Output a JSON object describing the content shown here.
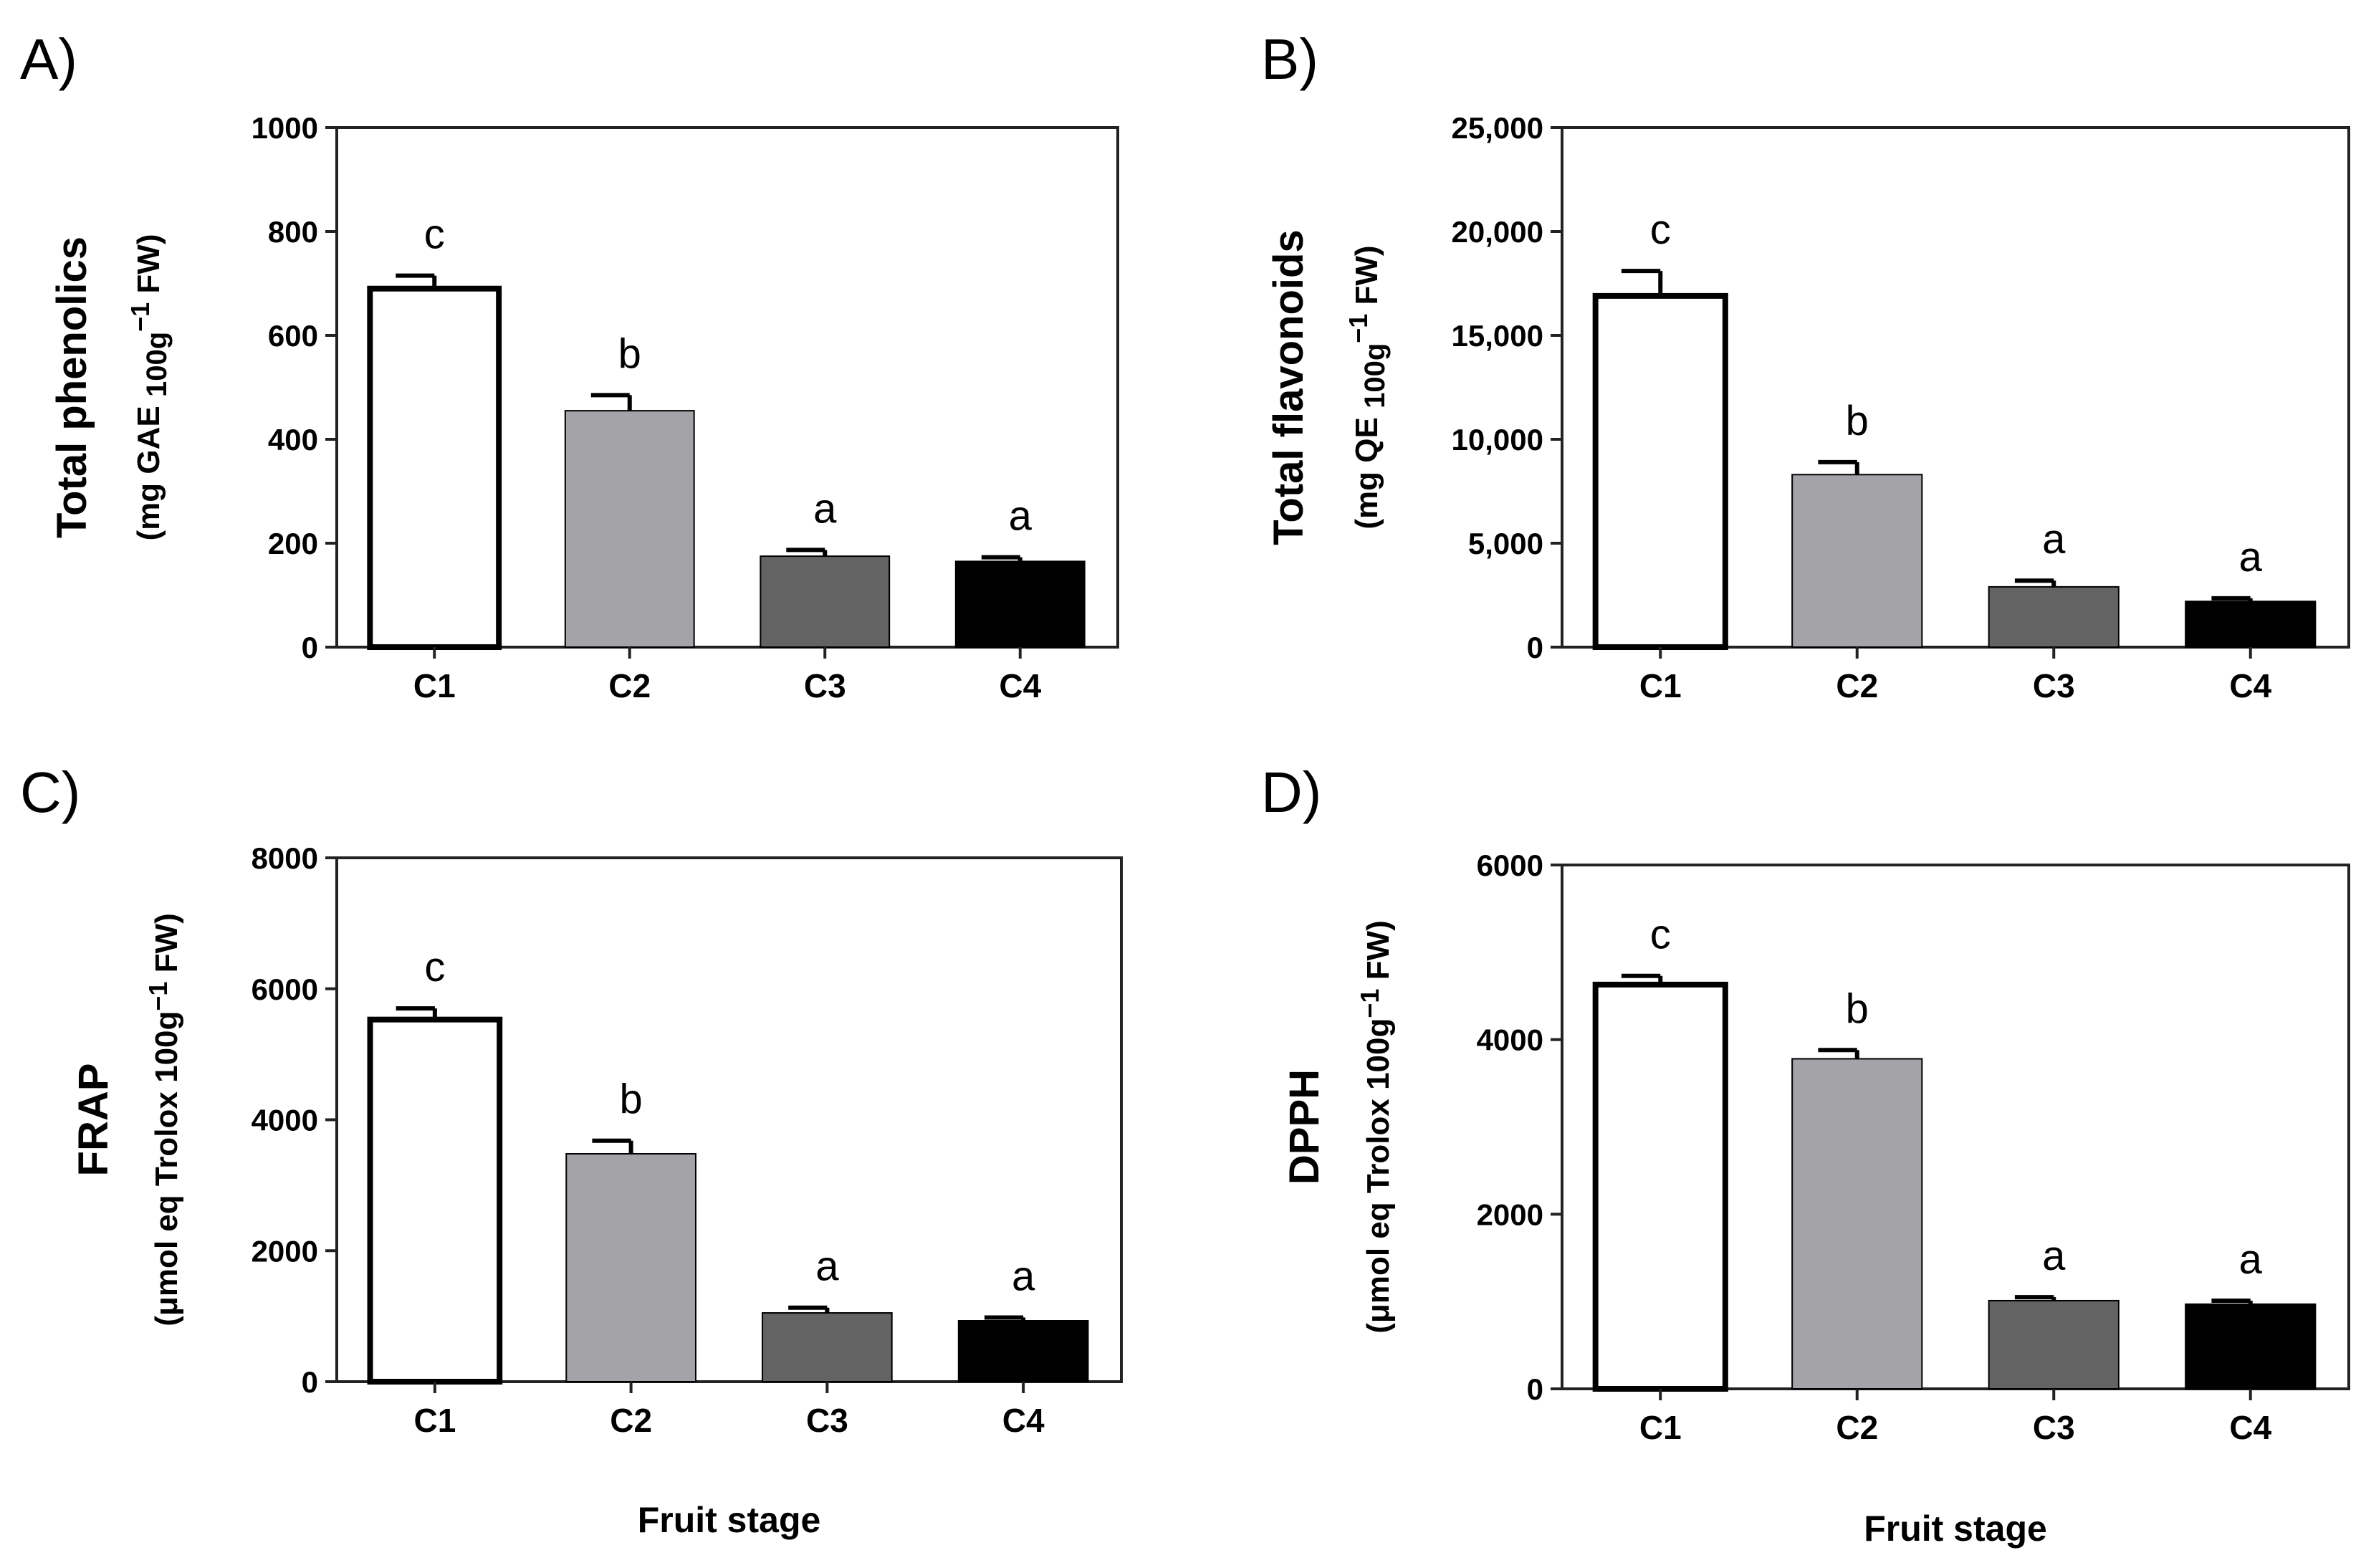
{
  "chart_data": [
    {
      "type": "bar",
      "panel": "A)",
      "title": "",
      "ylabel": "Total phenolics",
      "ylabel_unit_parts": [
        "(mg GAE ",
        "100g",
        "−1",
        " FW)"
      ],
      "xlabel": "",
      "categories": [
        "C1",
        "C2",
        "C3",
        "C4"
      ],
      "values": [
        690,
        455,
        175,
        165
      ],
      "errors": [
        25,
        30,
        12,
        8
      ],
      "significance": [
        "c",
        "b",
        "a",
        "a"
      ],
      "bar_colors": [
        "#ffffff",
        "#a3a3a8",
        "#636363",
        "#000000"
      ],
      "ylim": [
        0,
        1000
      ],
      "yticks": [
        0,
        200,
        400,
        600,
        800,
        1000
      ],
      "ytick_labels": [
        "0",
        "200",
        "400",
        "600",
        "800",
        "1000"
      ]
    },
    {
      "type": "bar",
      "panel": "B)",
      "title": "",
      "ylabel": "Total flavonoids",
      "ylabel_unit_parts": [
        "(mg QE ",
        "100g",
        "−1",
        " FW)"
      ],
      "xlabel": "",
      "categories": [
        "C1",
        "C2",
        "C3",
        "C4"
      ],
      "values": [
        16900,
        8300,
        2900,
        2200
      ],
      "errors": [
        1200,
        600,
        300,
        150
      ],
      "significance": [
        "c",
        "b",
        "a",
        "a"
      ],
      "bar_colors": [
        "#ffffff",
        "#a3a3a8",
        "#636363",
        "#000000"
      ],
      "ylim": [
        0,
        25000
      ],
      "yticks": [
        0,
        5000,
        10000,
        15000,
        20000,
        25000
      ],
      "ytick_labels": [
        "0",
        "5,000",
        "10,000",
        "15,000",
        "20,000",
        "25,000"
      ]
    },
    {
      "type": "bar",
      "panel": "C)",
      "title": "",
      "ylabel": "FRAP",
      "ylabel_unit_parts": [
        "(μmol eq Trolox 100g",
        "−1",
        " FW)"
      ],
      "xlabel": "Fruit stage",
      "categories": [
        "C1",
        "C2",
        "C3",
        "C4"
      ],
      "values": [
        5530,
        3480,
        1050,
        930
      ],
      "errors": [
        170,
        200,
        80,
        50
      ],
      "significance": [
        "c",
        "b",
        "a",
        "a"
      ],
      "bar_colors": [
        "#ffffff",
        "#a3a3a8",
        "#636363",
        "#000000"
      ],
      "ylim": [
        0,
        8000
      ],
      "yticks": [
        0,
        2000,
        4000,
        6000,
        8000
      ],
      "ytick_labels": [
        "0",
        "2000",
        "4000",
        "6000",
        "8000"
      ]
    },
    {
      "type": "bar",
      "panel": "D)",
      "title": "",
      "ylabel": "DPPH",
      "ylabel_unit_parts": [
        "(μmol eq Trolox 100g",
        "−1",
        " FW)"
      ],
      "xlabel": "Fruit stage",
      "categories": [
        "C1",
        "C2",
        "C3",
        "C4"
      ],
      "values": [
        4630,
        3780,
        1010,
        970
      ],
      "errors": [
        100,
        100,
        40,
        40
      ],
      "significance": [
        "c",
        "b",
        "a",
        "a"
      ],
      "bar_colors": [
        "#ffffff",
        "#a3a3a8",
        "#636363",
        "#000000"
      ],
      "ylim": [
        0,
        6000
      ],
      "yticks": [
        0,
        2000,
        4000,
        6000
      ],
      "ytick_labels": [
        "0",
        "2000",
        "4000",
        "6000"
      ]
    }
  ]
}
